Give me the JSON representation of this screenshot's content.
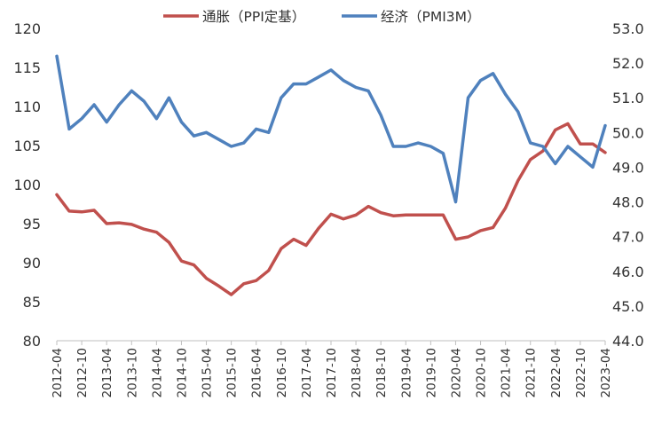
{
  "chart_data": {
    "type": "line",
    "x": [
      "2012-04",
      "2012-07",
      "2012-10",
      "2013-01",
      "2013-04",
      "2013-07",
      "2013-10",
      "2014-01",
      "2014-04",
      "2014-07",
      "2014-10",
      "2015-01",
      "2015-04",
      "2015-07",
      "2015-10",
      "2016-01",
      "2016-04",
      "2016-07",
      "2016-10",
      "2017-01",
      "2017-04",
      "2017-07",
      "2017-10",
      "2018-01",
      "2018-04",
      "2018-07",
      "2018-10",
      "2019-01",
      "2019-04",
      "2019-07",
      "2019-10",
      "2020-01",
      "2020-04",
      "2020-07",
      "2020-10",
      "2021-01",
      "2021-04",
      "2021-07",
      "2021-10",
      "2022-01",
      "2022-04",
      "2022-07",
      "2022-10",
      "2023-01",
      "2023-04"
    ],
    "x_tick_labels": [
      "2012-04",
      "2012-10",
      "2013-04",
      "2013-10",
      "2014-04",
      "2014-10",
      "2015-04",
      "2015-10",
      "2016-04",
      "2016-10",
      "2017-04",
      "2017-10",
      "2018-04",
      "2018-10",
      "2019-04",
      "2019-10",
      "2020-04",
      "2020-10",
      "2021-04",
      "2021-10",
      "2022-04",
      "2022-10",
      "2023-04"
    ],
    "left_axis": {
      "ylim": [
        80,
        120
      ],
      "ticks": [
        "80",
        "85",
        "90",
        "95",
        "100",
        "105",
        "110",
        "115",
        "120"
      ]
    },
    "right_axis": {
      "ylim": [
        44.0,
        53.0
      ],
      "ticks": [
        "44.0",
        "45.0",
        "46.0",
        "47.0",
        "48.0",
        "49.0",
        "50.0",
        "51.0",
        "52.0",
        "53.0"
      ]
    },
    "legend_position": "top-center",
    "series": [
      {
        "name": "通胀（PPI定基）",
        "axis": "left",
        "color": "#c0504d",
        "values": [
          98.7,
          96.6,
          96.5,
          96.7,
          95.0,
          95.1,
          94.9,
          94.3,
          93.9,
          92.6,
          90.2,
          89.7,
          88.0,
          87.0,
          85.9,
          87.3,
          87.7,
          89.0,
          91.8,
          93.0,
          92.2,
          94.4,
          96.2,
          95.6,
          96.1,
          97.2,
          96.4,
          96.0,
          96.1,
          96.1,
          96.1,
          96.1,
          93.0,
          93.3,
          94.1,
          94.5,
          97.0,
          100.5,
          103.2,
          104.3,
          107.0,
          107.8,
          105.2,
          105.2,
          104.1
        ]
      },
      {
        "name": "经济（PMI3M）",
        "axis": "right",
        "color": "#4f81bd",
        "values": [
          52.2,
          50.1,
          50.4,
          50.8,
          50.3,
          50.8,
          51.2,
          50.9,
          50.4,
          51.0,
          50.3,
          49.9,
          50.0,
          49.8,
          49.6,
          49.7,
          50.1,
          50.0,
          51.0,
          51.4,
          51.4,
          51.6,
          51.8,
          51.5,
          51.3,
          51.2,
          50.5,
          49.6,
          49.6,
          49.7,
          49.6,
          49.4,
          48.0,
          51.0,
          51.5,
          51.7,
          51.1,
          50.6,
          49.7,
          49.6,
          49.1,
          49.6,
          49.3,
          49.0,
          50.2
        ]
      }
    ]
  }
}
